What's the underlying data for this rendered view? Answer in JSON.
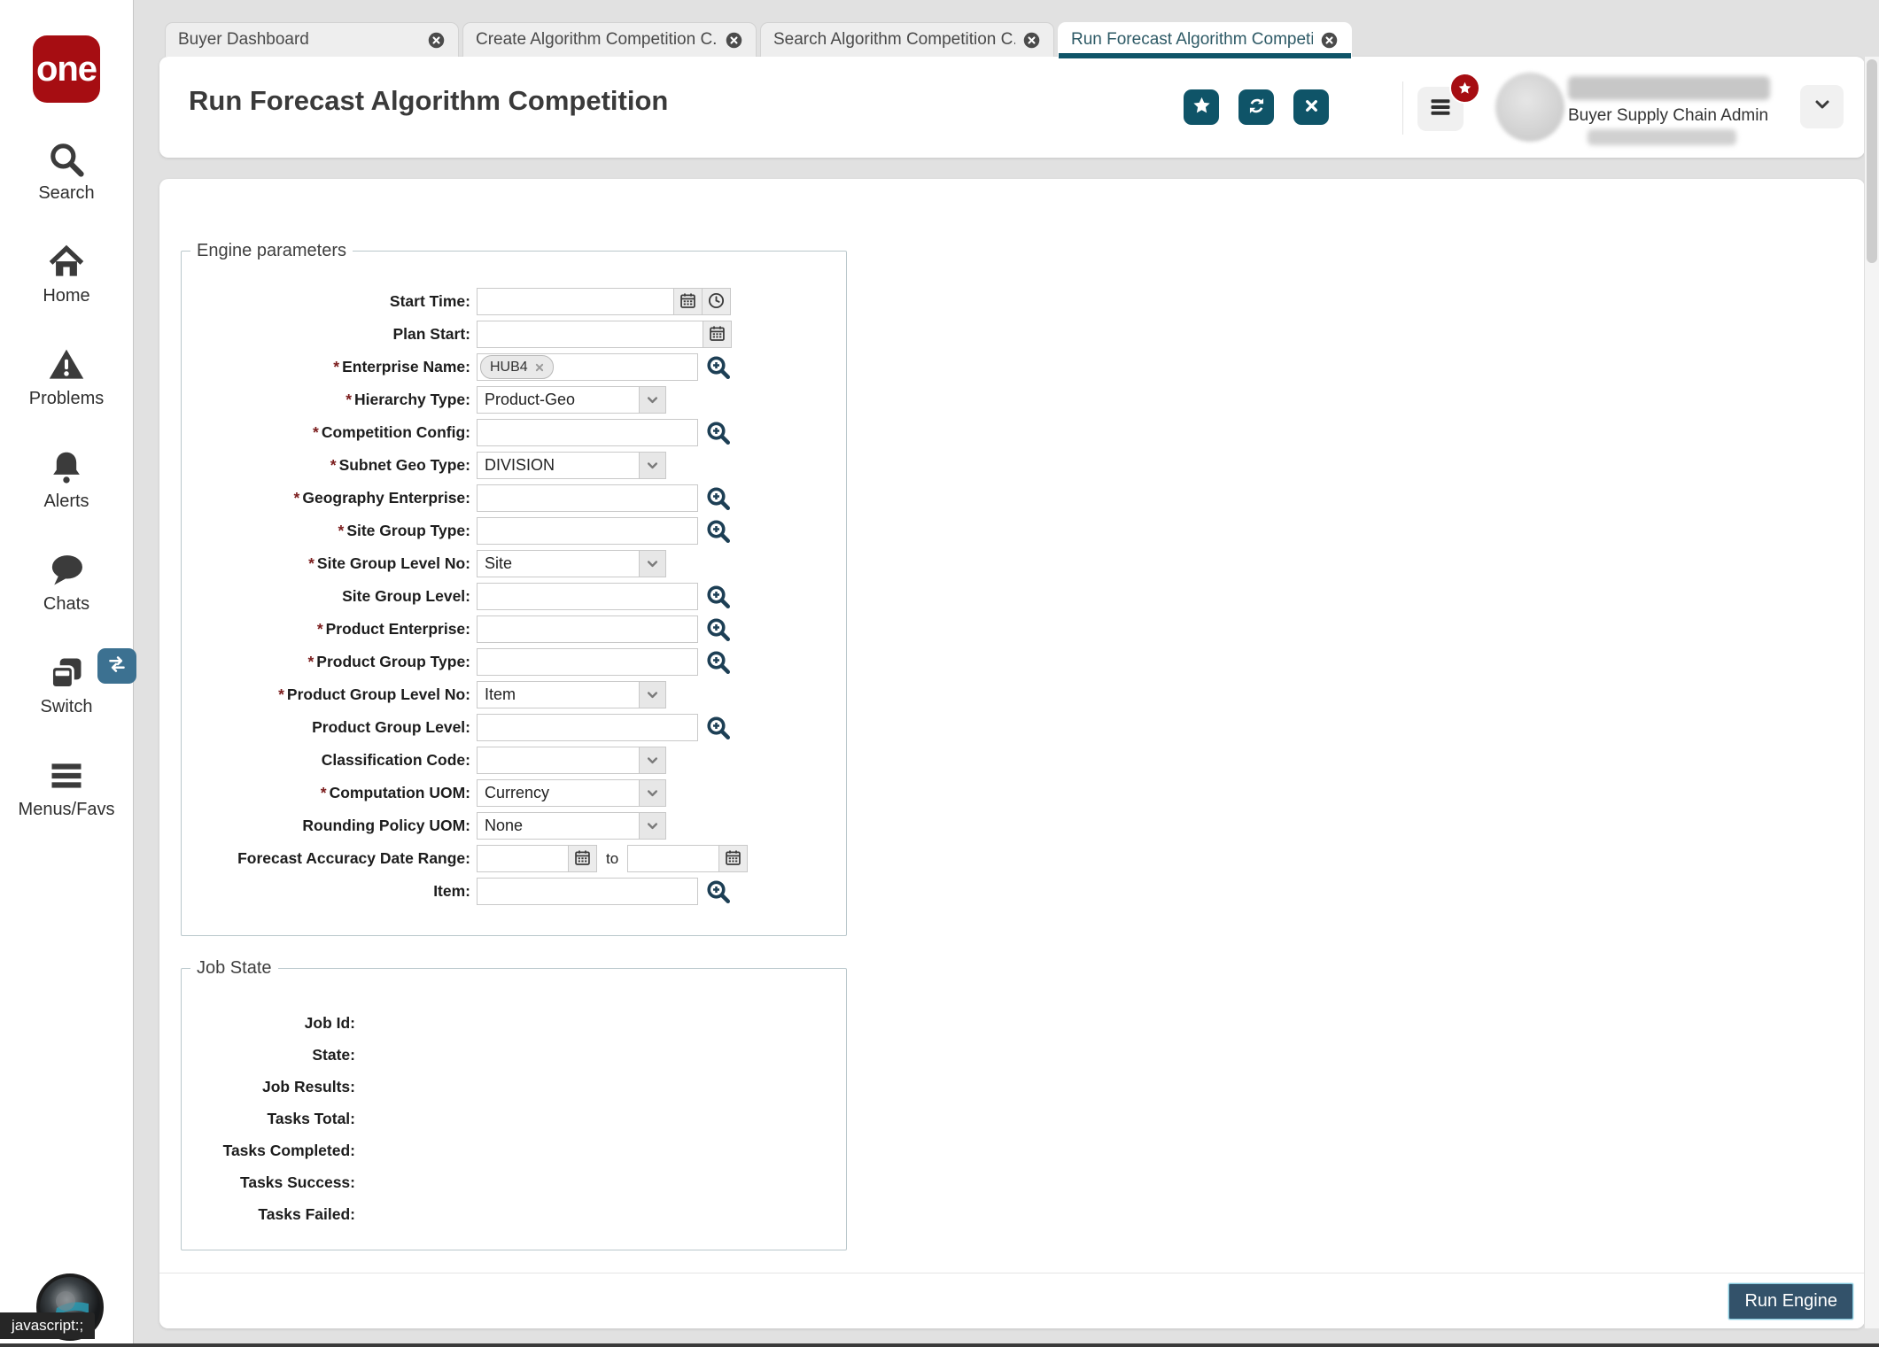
{
  "app": {
    "logo_text": "one"
  },
  "sidebar": {
    "items": [
      {
        "label": "Search",
        "icon": "search-icon"
      },
      {
        "label": "Home",
        "icon": "home-icon"
      },
      {
        "label": "Problems",
        "icon": "warning-icon"
      },
      {
        "label": "Alerts",
        "icon": "bell-icon"
      },
      {
        "label": "Chats",
        "icon": "chat-icon"
      },
      {
        "label": "Switch",
        "icon": "switch-icon",
        "badge": "swap-arrows"
      },
      {
        "label": "Menus/Favs",
        "icon": "menu-icon"
      }
    ],
    "status_hint": "javascript:;"
  },
  "tabs": [
    {
      "label": "Buyer Dashboard",
      "active": false
    },
    {
      "label": "Create Algorithm Competition C...",
      "active": false
    },
    {
      "label": "Search Algorithm Competition C...",
      "active": false
    },
    {
      "label": "Run Forecast Algorithm Competi...",
      "active": true
    }
  ],
  "header": {
    "title": "Run Forecast Algorithm Competition",
    "actions": [
      {
        "name": "favorite-button",
        "icon": "star-icon"
      },
      {
        "name": "refresh-button",
        "icon": "refresh-icon"
      },
      {
        "name": "close-button",
        "icon": "close-x-icon"
      }
    ],
    "user_role": "Buyer Supply Chain Admin"
  },
  "engine_params": {
    "legend": "Engine parameters",
    "fields": [
      {
        "label": "Start Time:",
        "required": false,
        "type": "datetime"
      },
      {
        "label": "Plan Start:",
        "required": false,
        "type": "date"
      },
      {
        "label": "Enterprise Name:",
        "required": true,
        "type": "lookup",
        "tags": [
          "HUB4"
        ]
      },
      {
        "label": "Hierarchy Type:",
        "required": true,
        "type": "select",
        "value": "Product-Geo"
      },
      {
        "label": "Competition Config:",
        "required": true,
        "type": "lookup"
      },
      {
        "label": "Subnet Geo Type:",
        "required": true,
        "type": "select",
        "value": "DIVISION"
      },
      {
        "label": "Geography Enterprise:",
        "required": true,
        "type": "lookup"
      },
      {
        "label": "Site Group Type:",
        "required": true,
        "type": "lookup"
      },
      {
        "label": "Site Group Level No:",
        "required": true,
        "type": "select",
        "value": "Site"
      },
      {
        "label": "Site Group Level:",
        "required": false,
        "type": "lookup"
      },
      {
        "label": "Product Enterprise:",
        "required": true,
        "type": "lookup"
      },
      {
        "label": "Product Group Type:",
        "required": true,
        "type": "lookup"
      },
      {
        "label": "Product Group Level No:",
        "required": true,
        "type": "select",
        "value": "Item"
      },
      {
        "label": "Product Group Level:",
        "required": false,
        "type": "lookup"
      },
      {
        "label": "Classification Code:",
        "required": false,
        "type": "select",
        "value": ""
      },
      {
        "label": "Computation UOM:",
        "required": true,
        "type": "select",
        "value": "Currency"
      },
      {
        "label": "Rounding Policy UOM:",
        "required": false,
        "type": "select",
        "value": "None"
      },
      {
        "label": "Forecast Accuracy Date Range:",
        "required": false,
        "type": "daterange",
        "separator": "to"
      },
      {
        "label": "Item:",
        "required": false,
        "type": "lookup"
      }
    ]
  },
  "job_state": {
    "legend": "Job State",
    "fields": [
      {
        "label": "Job Id:",
        "value": ""
      },
      {
        "label": "State:",
        "value": ""
      },
      {
        "label": "Job Results:",
        "value": ""
      },
      {
        "label": "Tasks Total:",
        "value": ""
      },
      {
        "label": "Tasks Completed:",
        "value": ""
      },
      {
        "label": "Tasks Success:",
        "value": ""
      },
      {
        "label": "Tasks Failed:",
        "value": ""
      }
    ]
  },
  "footer": {
    "run_button": "Run Engine"
  },
  "colors": {
    "teal_accent": "#0f5468",
    "brand_red": "#a60d12",
    "switch_badge_blue": "#3c7191",
    "run_button_navy": "#33526a",
    "run_button_border": "#86c9dd"
  }
}
